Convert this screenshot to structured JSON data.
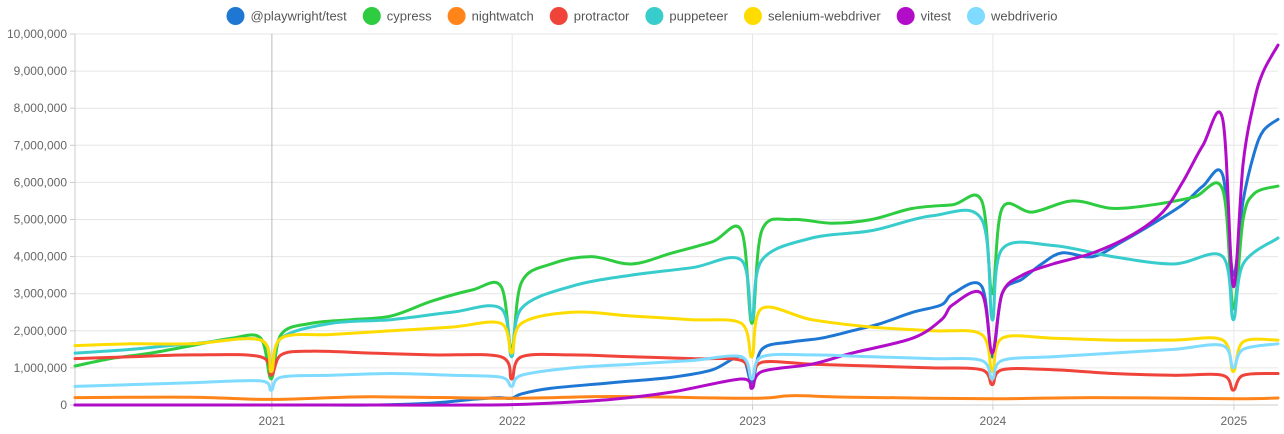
{
  "chart_data": {
    "type": "line",
    "title": "",
    "xlabel": "",
    "ylabel": "",
    "ylim": [
      0,
      10000000
    ],
    "y_ticks": [
      0,
      1000000,
      2000000,
      3000000,
      4000000,
      5000000,
      6000000,
      7000000,
      8000000,
      9000000,
      10000000
    ],
    "y_tick_labels": [
      "0",
      "1,000,000",
      "2,000,000",
      "3,000,000",
      "4,000,000",
      "5,000,000",
      "6,000,000",
      "7,000,000",
      "8,000,000",
      "9,000,000",
      "10,000,000"
    ],
    "x_ticks": [
      "2021-01-01",
      "2022-01-01",
      "2023-01-01",
      "2024-01-01",
      "2025-01-01"
    ],
    "x_tick_labels": [
      "2021",
      "2022",
      "2023",
      "2024",
      "2025"
    ],
    "xlim": [
      "2020-03-08",
      "2025-03-09"
    ],
    "grid": true,
    "legend_position": "top",
    "series": [
      {
        "name": "@playwright/test",
        "color": "#1F77D4",
        "x": [
          "2020-03-08",
          "2020-06-01",
          "2020-09-01",
          "2020-12-01",
          "2021-01-01",
          "2021-03-01",
          "2021-06-01",
          "2021-09-01",
          "2021-11-01",
          "2021-12-10",
          "2021-12-31",
          "2022-01-15",
          "2022-03-01",
          "2022-06-01",
          "2022-09-01",
          "2022-11-01",
          "2022-12-15",
          "2022-12-31",
          "2023-01-15",
          "2023-03-01",
          "2023-04-15",
          "2023-06-01",
          "2023-07-15",
          "2023-09-01",
          "2023-10-15",
          "2023-11-01",
          "2023-12-15",
          "2023-12-31",
          "2024-01-15",
          "2024-02-15",
          "2024-03-15",
          "2024-04-15",
          "2024-06-01",
          "2024-07-15",
          "2024-09-01",
          "2024-10-15",
          "2024-11-15",
          "2024-12-15",
          "2024-12-31",
          "2025-01-15",
          "2025-02-01",
          "2025-02-15",
          "2025-03-09"
        ],
        "values": [
          0,
          0,
          0,
          0,
          0,
          0,
          0,
          50000,
          150000,
          200000,
          180000,
          300000,
          450000,
          600000,
          750000,
          950000,
          1300000,
          600000,
          1500000,
          1700000,
          1800000,
          2000000,
          2200000,
          2500000,
          2700000,
          3000000,
          3200000,
          1300000,
          3000000,
          3400000,
          3800000,
          4100000,
          4000000,
          4400000,
          4900000,
          5400000,
          5900000,
          6200000,
          3500000,
          5500000,
          6800000,
          7400000,
          7700000
        ]
      },
      {
        "name": "cypress",
        "color": "#2ECC40",
        "x": [
          "2020-03-08",
          "2020-05-01",
          "2020-07-01",
          "2020-09-01",
          "2020-11-01",
          "2020-12-15",
          "2020-12-31",
          "2021-01-15",
          "2021-03-01",
          "2021-05-01",
          "2021-07-01",
          "2021-09-01",
          "2021-11-01",
          "2021-12-15",
          "2021-12-31",
          "2022-01-15",
          "2022-03-01",
          "2022-05-01",
          "2022-07-01",
          "2022-09-01",
          "2022-11-01",
          "2022-12-15",
          "2022-12-31",
          "2023-01-15",
          "2023-03-01",
          "2023-05-01",
          "2023-07-01",
          "2023-09-01",
          "2023-11-01",
          "2023-12-15",
          "2023-12-31",
          "2024-01-15",
          "2024-03-01",
          "2024-05-01",
          "2024-07-01",
          "2024-09-01",
          "2024-11-01",
          "2024-12-15",
          "2024-12-31",
          "2025-01-15",
          "2025-02-01",
          "2025-03-09"
        ],
        "values": [
          1050000,
          1250000,
          1400000,
          1600000,
          1800000,
          1800000,
          700000,
          1900000,
          2200000,
          2300000,
          2400000,
          2800000,
          3100000,
          3200000,
          1500000,
          3300000,
          3800000,
          4000000,
          3800000,
          4100000,
          4400000,
          4700000,
          2200000,
          4700000,
          5000000,
          4900000,
          5000000,
          5300000,
          5400000,
          5500000,
          3000000,
          5300000,
          5200000,
          5500000,
          5300000,
          5400000,
          5600000,
          5800000,
          2600000,
          5000000,
          5700000,
          5900000
        ]
      },
      {
        "name": "nightwatch",
        "color": "#FF851B",
        "x": [
          "2020-03-08",
          "2020-09-01",
          "2020-12-31",
          "2021-06-01",
          "2021-12-31",
          "2022-06-01",
          "2022-12-31",
          "2023-03-01",
          "2023-06-01",
          "2023-12-31",
          "2024-06-01",
          "2024-12-31",
          "2025-03-09"
        ],
        "values": [
          200000,
          210000,
          150000,
          220000,
          180000,
          230000,
          180000,
          250000,
          210000,
          170000,
          200000,
          170000,
          190000
        ]
      },
      {
        "name": "protractor",
        "color": "#F0433A",
        "x": [
          "2020-03-08",
          "2020-06-01",
          "2020-09-01",
          "2020-12-15",
          "2020-12-31",
          "2021-01-15",
          "2021-03-01",
          "2021-06-01",
          "2021-09-01",
          "2021-12-15",
          "2021-12-31",
          "2022-01-15",
          "2022-04-01",
          "2022-07-01",
          "2022-10-01",
          "2022-12-15",
          "2022-12-31",
          "2023-01-15",
          "2023-04-01",
          "2023-07-01",
          "2023-10-01",
          "2023-12-15",
          "2023-12-31",
          "2024-01-15",
          "2024-04-01",
          "2024-07-01",
          "2024-10-01",
          "2024-12-15",
          "2024-12-31",
          "2025-01-15",
          "2025-03-09"
        ],
        "values": [
          1250000,
          1300000,
          1350000,
          1300000,
          800000,
          1350000,
          1450000,
          1400000,
          1350000,
          1300000,
          700000,
          1300000,
          1350000,
          1300000,
          1250000,
          1200000,
          700000,
          1150000,
          1100000,
          1050000,
          1000000,
          950000,
          550000,
          950000,
          950000,
          850000,
          800000,
          800000,
          400000,
          800000,
          850000
        ]
      },
      {
        "name": "puppeteer",
        "color": "#39CCCC",
        "x": [
          "2020-03-08",
          "2020-06-01",
          "2020-09-01",
          "2020-12-15",
          "2020-12-31",
          "2021-01-15",
          "2021-04-01",
          "2021-07-01",
          "2021-10-01",
          "2021-12-15",
          "2021-12-31",
          "2022-01-15",
          "2022-04-01",
          "2022-07-01",
          "2022-10-01",
          "2022-12-15",
          "2022-12-31",
          "2023-01-15",
          "2023-04-01",
          "2023-07-01",
          "2023-10-01",
          "2023-12-15",
          "2023-12-31",
          "2024-01-15",
          "2024-04-01",
          "2024-07-01",
          "2024-10-01",
          "2024-12-15",
          "2024-12-31",
          "2025-01-15",
          "2025-03-09"
        ],
        "values": [
          1400000,
          1500000,
          1650000,
          1750000,
          900000,
          1800000,
          2200000,
          2300000,
          2500000,
          2600000,
          1300000,
          2600000,
          3200000,
          3500000,
          3700000,
          3900000,
          2300000,
          3900000,
          4500000,
          4700000,
          5100000,
          5000000,
          2300000,
          4200000,
          4300000,
          4000000,
          3800000,
          4000000,
          2300000,
          3800000,
          4500000
        ]
      },
      {
        "name": "selenium-webdriver",
        "color": "#FFDC00",
        "x": [
          "2020-03-08",
          "2020-06-01",
          "2020-09-01",
          "2020-12-15",
          "2020-12-31",
          "2021-01-15",
          "2021-04-01",
          "2021-07-01",
          "2021-10-01",
          "2021-12-15",
          "2021-12-31",
          "2022-01-15",
          "2022-04-01",
          "2022-07-01",
          "2022-10-01",
          "2022-12-15",
          "2022-12-31",
          "2023-01-15",
          "2023-04-01",
          "2023-07-01",
          "2023-10-01",
          "2023-12-15",
          "2023-12-31",
          "2024-01-15",
          "2024-04-01",
          "2024-07-01",
          "2024-10-01",
          "2024-12-15",
          "2024-12-31",
          "2025-01-15",
          "2025-03-09"
        ],
        "values": [
          1600000,
          1650000,
          1650000,
          1750000,
          900000,
          1800000,
          1900000,
          2000000,
          2100000,
          2200000,
          1400000,
          2200000,
          2500000,
          2400000,
          2300000,
          2200000,
          1300000,
          2600000,
          2300000,
          2100000,
          2000000,
          1900000,
          900000,
          1800000,
          1800000,
          1750000,
          1750000,
          1750000,
          900000,
          1700000,
          1750000
        ]
      },
      {
        "name": "vitest",
        "color": "#B10DC9",
        "x": [
          "2020-03-08",
          "2021-01-01",
          "2021-06-01",
          "2021-12-01",
          "2022-03-01",
          "2022-06-01",
          "2022-09-01",
          "2022-12-15",
          "2022-12-31",
          "2023-01-15",
          "2023-04-01",
          "2023-06-01",
          "2023-09-01",
          "2023-10-15",
          "2023-11-01",
          "2023-12-15",
          "2023-12-31",
          "2024-01-15",
          "2024-02-15",
          "2024-04-01",
          "2024-06-01",
          "2024-08-01",
          "2024-09-15",
          "2024-10-15",
          "2024-11-15",
          "2024-12-15",
          "2024-12-31",
          "2025-01-15",
          "2025-02-01",
          "2025-02-15",
          "2025-03-09"
        ],
        "values": [
          0,
          0,
          0,
          0,
          50000,
          150000,
          350000,
          700000,
          450000,
          900000,
          1100000,
          1400000,
          1800000,
          2300000,
          2700000,
          3000000,
          1400000,
          3000000,
          3500000,
          3800000,
          4100000,
          4600000,
          5200000,
          6000000,
          7000000,
          7700000,
          3200000,
          6500000,
          8200000,
          9000000,
          9700000
        ]
      },
      {
        "name": "webdriverio",
        "color": "#7FDBFF",
        "x": [
          "2020-03-08",
          "2020-06-01",
          "2020-09-01",
          "2020-12-15",
          "2020-12-31",
          "2021-01-15",
          "2021-04-01",
          "2021-07-01",
          "2021-10-01",
          "2021-12-15",
          "2021-12-31",
          "2022-01-15",
          "2022-04-01",
          "2022-07-01",
          "2022-10-01",
          "2022-12-15",
          "2022-12-31",
          "2023-01-15",
          "2023-04-01",
          "2023-07-01",
          "2023-10-01",
          "2023-12-15",
          "2023-12-31",
          "2024-01-15",
          "2024-04-01",
          "2024-07-01",
          "2024-10-01",
          "2024-12-15",
          "2024-12-31",
          "2025-01-15",
          "2025-03-09"
        ],
        "values": [
          500000,
          550000,
          600000,
          650000,
          400000,
          750000,
          800000,
          850000,
          800000,
          750000,
          500000,
          800000,
          1000000,
          1100000,
          1200000,
          1300000,
          700000,
          1300000,
          1350000,
          1300000,
          1250000,
          1200000,
          700000,
          1200000,
          1300000,
          1400000,
          1500000,
          1600000,
          1000000,
          1500000,
          1650000
        ]
      }
    ]
  }
}
